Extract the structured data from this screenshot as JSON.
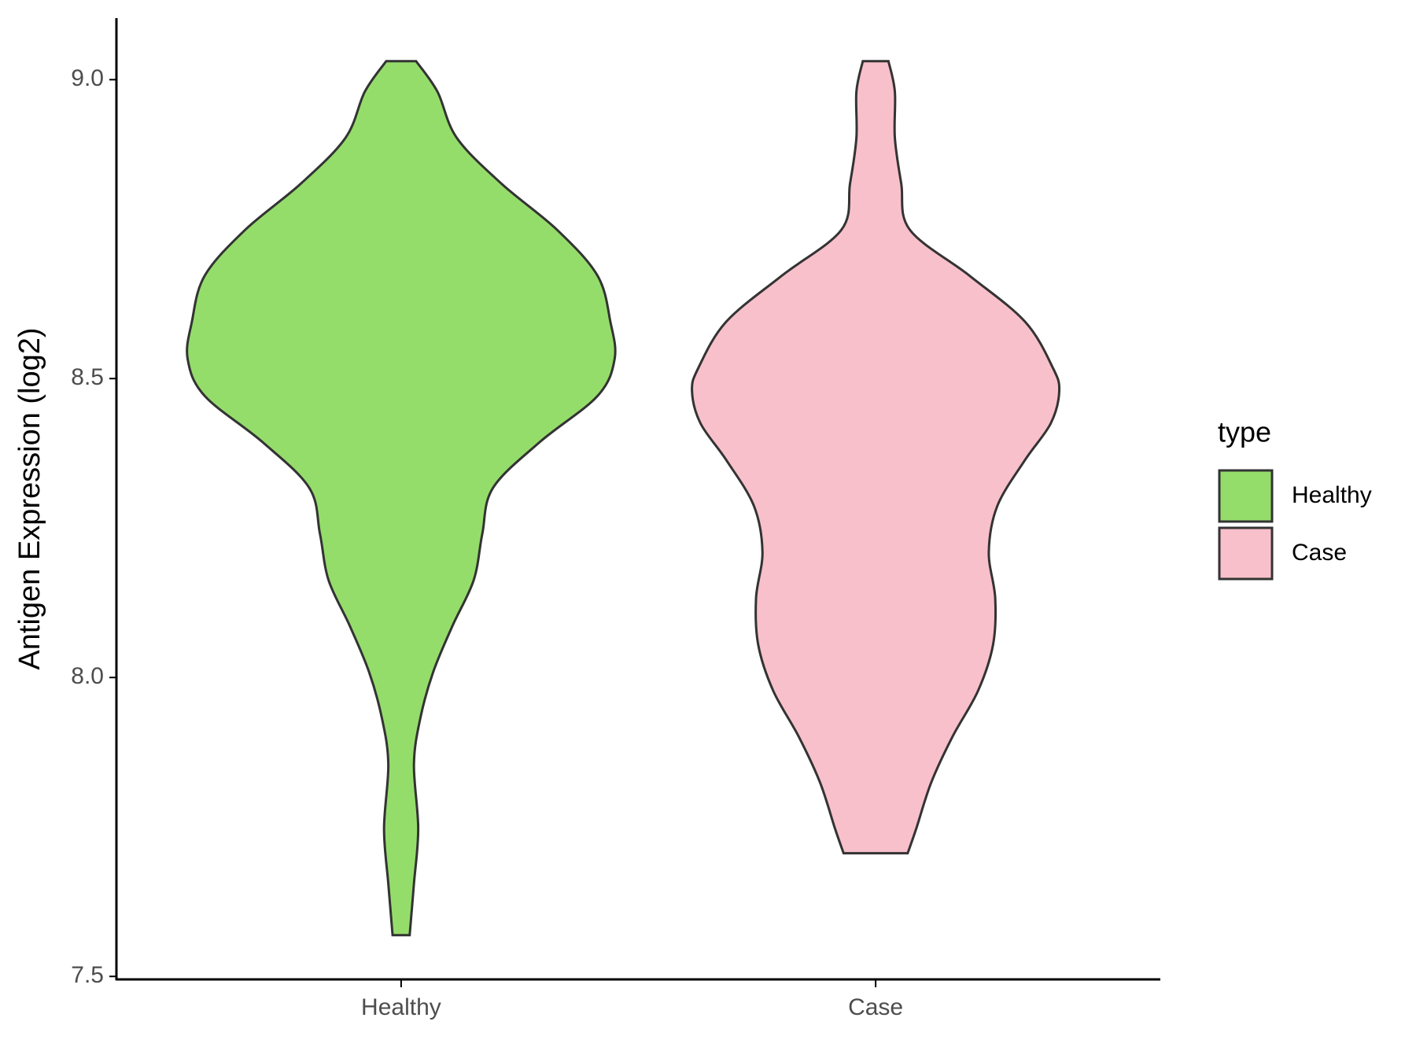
{
  "chart_data": {
    "type": "violin",
    "y_label": "Antigen Expression (log2)",
    "categories": [
      "Healthy",
      "Case"
    ],
    "ylim": [
      7.495,
      9.103
    ],
    "yticks": [
      {
        "value": 7.5,
        "label": "7.5"
      },
      {
        "value": 8,
        "label": "8.0"
      },
      {
        "value": 8.5,
        "label": "8.5"
      },
      {
        "value": 9,
        "label": "9.0"
      }
    ],
    "legend_title": "type",
    "legend_position": "right",
    "series": [
      {
        "name": "Healthy",
        "color": "#95dd6b",
        "y": [
          9.031,
          8.98,
          8.903,
          8.826,
          8.749,
          8.672,
          8.595,
          8.533,
          8.471,
          8.394,
          8.317,
          8.24,
          8.163,
          8.086,
          8.009,
          7.932,
          7.855,
          7.747,
          7.655,
          7.569
        ],
        "values": [
          0.07,
          0.17,
          0.26,
          0.47,
          0.73,
          0.92,
          0.98,
          1,
          0.92,
          0.65,
          0.43,
          0.38,
          0.34,
          0.24,
          0.15,
          0.09,
          0.06,
          0.08,
          0.06,
          0.04
        ]
      },
      {
        "name": "Case",
        "color": "#f8c0cb",
        "y": [
          9.031,
          8.98,
          8.903,
          8.826,
          8.749,
          8.672,
          8.595,
          8.518,
          8.479,
          8.425,
          8.364,
          8.287,
          8.21,
          8.133,
          8.055,
          7.978,
          7.901,
          7.824,
          7.747,
          7.706
        ],
        "values": [
          0.06,
          0.09,
          0.09,
          0.12,
          0.16,
          0.44,
          0.7,
          0.83,
          0.86,
          0.82,
          0.7,
          0.57,
          0.53,
          0.56,
          0.55,
          0.48,
          0.36,
          0.26,
          0.19,
          0.15
        ]
      }
    ]
  }
}
